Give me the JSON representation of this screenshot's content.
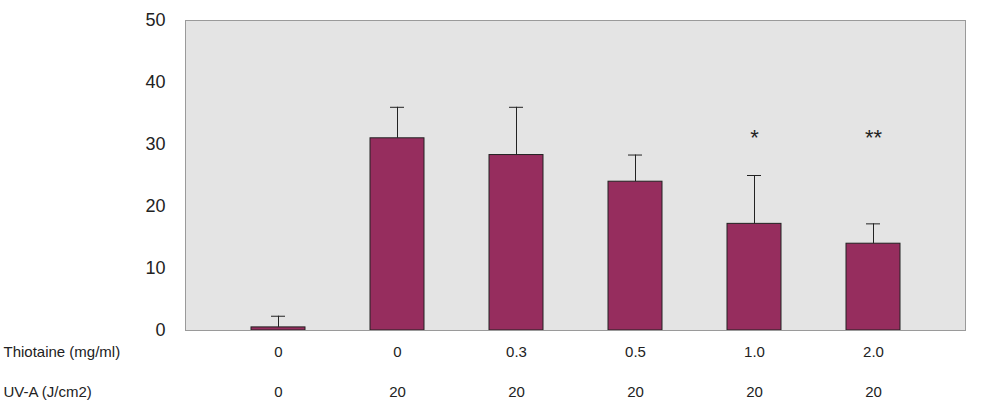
{
  "chart_data": {
    "type": "bar",
    "category_labels": [
      "Thiotaine (mg/ml)",
      "UV-A (J/cm2)"
    ],
    "categories": [
      [
        "0",
        "0"
      ],
      [
        "0",
        "20"
      ],
      [
        "0.3",
        "20"
      ],
      [
        "0.5",
        "20"
      ],
      [
        "1.0",
        "20"
      ],
      [
        "2.0",
        "20"
      ]
    ],
    "values": [
      0.5,
      31,
      28.3,
      24,
      17.2,
      14
    ],
    "errors": [
      1.8,
      5,
      7.7,
      4.3,
      7.8,
      3.2
    ],
    "color": "#962d5e",
    "ylim": [
      0,
      50
    ],
    "yticks": [
      0,
      10,
      20,
      30,
      40,
      50
    ],
    "grid": false,
    "annotations": [
      {
        "index": 4,
        "text": "*",
        "y": 31
      },
      {
        "index": 5,
        "text": "**",
        "y": 31
      }
    ]
  }
}
